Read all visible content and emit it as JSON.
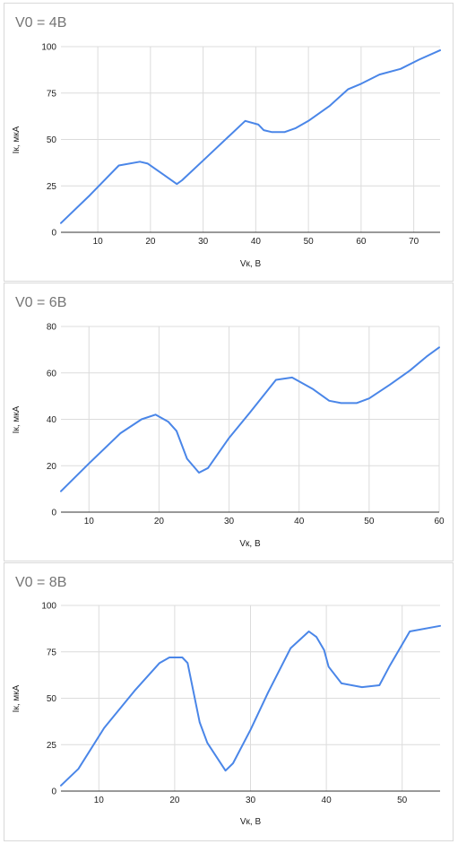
{
  "chart_data": [
    {
      "type": "line",
      "title": "V0 = 4В",
      "xlabel": "Vк, В",
      "ylabel": "Iк, мкА",
      "xlim": [
        3,
        75
      ],
      "ylim": [
        0,
        100
      ],
      "xticks": [
        10,
        20,
        30,
        40,
        50,
        60,
        70
      ],
      "yticks": [
        0,
        25,
        50,
        75,
        100
      ],
      "grid": true,
      "series": [
        {
          "x": [
            3,
            8.5,
            14,
            18,
            19.5,
            20.5,
            22.5,
            25,
            26,
            30.5,
            38,
            40.5,
            41.5,
            43,
            45.5,
            47.5,
            50,
            54,
            57.5,
            60,
            63.5,
            67.5,
            71,
            75
          ],
          "y": [
            5,
            20,
            36,
            38,
            37,
            35,
            31,
            26,
            28,
            40,
            60,
            58,
            55,
            54,
            54,
            56,
            60,
            68,
            77,
            80,
            85,
            88,
            93,
            98
          ]
        }
      ]
    },
    {
      "type": "line",
      "title": "V0 = 6В",
      "xlabel": "Vк, В",
      "ylabel": "Iк, мкА",
      "xlim": [
        6,
        60
      ],
      "ylim": [
        0,
        80
      ],
      "xticks": [
        10,
        20,
        30,
        40,
        50,
        60
      ],
      "yticks": [
        0,
        20,
        40,
        60,
        80
      ],
      "grid": true,
      "series": [
        {
          "x": [
            6,
            10,
            14.5,
            17.5,
            19.5,
            21.3,
            22.5,
            24,
            25.7,
            27,
            30,
            33,
            36.7,
            39,
            42,
            44.3,
            46,
            48.2,
            50,
            53,
            55.8,
            58.2,
            60
          ],
          "y": [
            9,
            21,
            34,
            40,
            42,
            39,
            35,
            23,
            17,
            19,
            32,
            43,
            57,
            58,
            53,
            48,
            47,
            47,
            49,
            55,
            61,
            67,
            71
          ]
        }
      ]
    },
    {
      "type": "line",
      "title": "V0 = 8В",
      "xlabel": "Vк, В",
      "ylabel": "Iк, мкА",
      "xlim": [
        5,
        55
      ],
      "ylim": [
        0,
        100
      ],
      "xticks": [
        10,
        20,
        30,
        40,
        50
      ],
      "yticks": [
        0,
        25,
        50,
        75,
        100
      ],
      "grid": true,
      "series": [
        {
          "x": [
            5,
            7.3,
            10.7,
            14.7,
            18,
            19.3,
            21,
            21.7,
            23.3,
            24.3,
            26.7,
            27.7,
            30,
            32.3,
            35.3,
            37.7,
            38.7,
            39.7,
            40.3,
            42,
            44.7,
            47,
            48.3,
            51,
            55
          ],
          "y": [
            3,
            12,
            34,
            54,
            69,
            72,
            72,
            69,
            37,
            26,
            11,
            15,
            33,
            53,
            77,
            86,
            83,
            76,
            67,
            58,
            56,
            57,
            67,
            86,
            89
          ]
        }
      ]
    }
  ]
}
